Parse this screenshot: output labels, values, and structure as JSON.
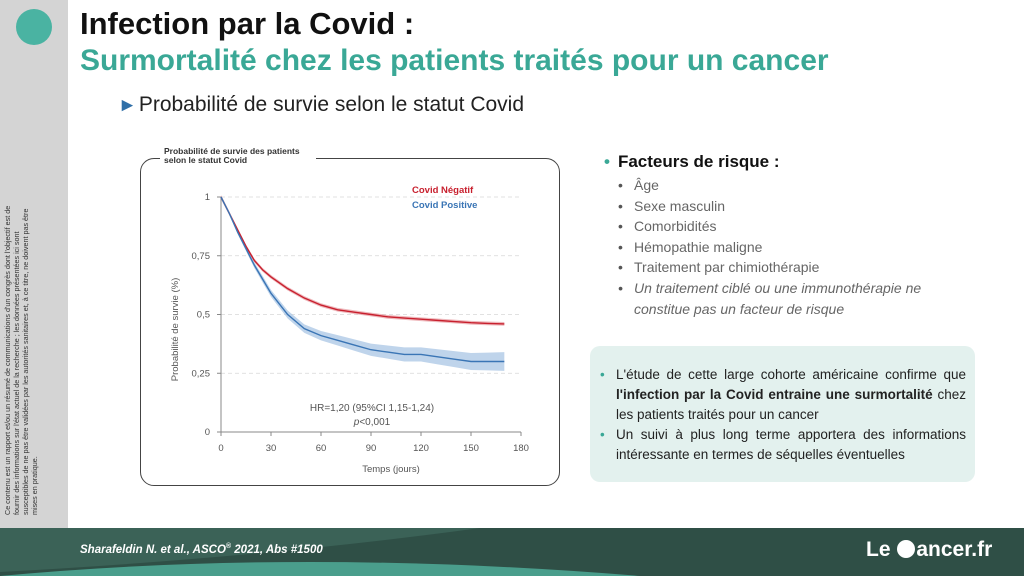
{
  "header": {
    "title": "Infection par la Covid :",
    "subtitle": "Surmortalité chez les patients traités pour un cancer",
    "bullet": "Probabilité de survie selon le statut Covid"
  },
  "disclaimer": "Ce contenu est un rapport et/ou un résumé de communications d'un congrès dont l'objectif est de fournir des informations sur l'état actuel de la recherche ; les données présentées ici sont susceptibles de ne pas être validées par les autorités sanitaires et, à ce titre, ne doivent pas être mises en pratique.",
  "chart_data": {
    "type": "line",
    "title": "Probabilité de survie des patients selon le statut Covid",
    "xlabel": "Temps (jours)",
    "ylabel": "Probabilité de survie (%)",
    "xlim": [
      0,
      180
    ],
    "ylim": [
      0,
      1
    ],
    "x_ticks": [
      "0",
      "30",
      "60",
      "90",
      "120",
      "150",
      "180"
    ],
    "y_ticks": [
      "0",
      "0,25",
      "0,5",
      "0,75",
      "1"
    ],
    "legend_position": "top-right",
    "annotation_line1": "HR=1,20 (95%CI 1,15-1,24)",
    "annotation_p_italic": "p",
    "annotation_p_value": "<0,001",
    "series": [
      {
        "name": "Covid Négatif",
        "color": "#c8202e",
        "band_color": "#e8a0a6",
        "x": [
          0,
          5,
          10,
          15,
          20,
          25,
          30,
          40,
          50,
          60,
          70,
          80,
          90,
          100,
          110,
          120,
          130,
          140,
          150,
          160,
          170
        ],
        "y": [
          1.0,
          0.93,
          0.86,
          0.79,
          0.73,
          0.69,
          0.66,
          0.61,
          0.57,
          0.54,
          0.52,
          0.51,
          0.5,
          0.49,
          0.485,
          0.48,
          0.475,
          0.47,
          0.465,
          0.462,
          0.46
        ]
      },
      {
        "name": "Covid Positive",
        "color": "#3a75b5",
        "band_color": "#a9c6e4",
        "x": [
          0,
          5,
          10,
          15,
          20,
          25,
          30,
          40,
          50,
          60,
          70,
          80,
          90,
          100,
          110,
          120,
          130,
          140,
          150,
          160,
          170
        ],
        "y": [
          1.0,
          0.93,
          0.85,
          0.78,
          0.71,
          0.65,
          0.59,
          0.5,
          0.44,
          0.41,
          0.39,
          0.37,
          0.35,
          0.34,
          0.33,
          0.33,
          0.32,
          0.31,
          0.3,
          0.3,
          0.3
        ],
        "band_halfwidth": [
          0,
          0.005,
          0.008,
          0.01,
          0.012,
          0.014,
          0.015,
          0.017,
          0.018,
          0.02,
          0.022,
          0.024,
          0.026,
          0.028,
          0.03,
          0.03,
          0.032,
          0.034,
          0.036,
          0.038,
          0.04
        ]
      }
    ]
  },
  "risk_factors": {
    "heading": "Facteurs de risque :",
    "items": [
      "Âge",
      "Sexe masculin",
      "Comorbidités",
      "Hémopathie maligne",
      "Traitement par chimiothérapie",
      "Un traitement ciblé ou une immunothérapie ne constitue pas un facteur de risque"
    ]
  },
  "conclusion": {
    "item1_pre": "L'étude de cette large cohorte américaine confirme que ",
    "item1_bold": "l'infection par la Covid entraine une surmortalité",
    "item1_post": " chez les patients traités pour un cancer",
    "item2": "Un suivi à plus long terme apportera des informations intéressante en termes de séquelles éventuelles"
  },
  "footer": {
    "citation_pre": "Sharafeldin N. et al., ASCO",
    "citation_sup": "®",
    "citation_post": " 2021, Abs #1500",
    "logo_left": "Le",
    "logo_right": "ancer.fr"
  },
  "colors": {
    "accent": "#3aa896",
    "footer": "#2f4f46",
    "box": "#e3f1ee"
  }
}
